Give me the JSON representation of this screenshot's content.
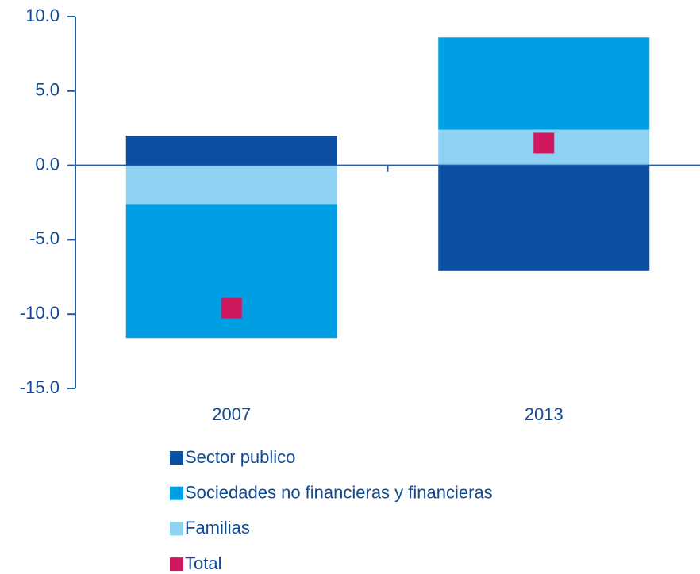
{
  "chart_data": {
    "type": "bar",
    "stacked": true,
    "categories": [
      "2007",
      "2013"
    ],
    "series": [
      {
        "name": "Sector publico",
        "color": "#0b4fa2",
        "values": [
          2.0,
          -7.1
        ]
      },
      {
        "name": "Sociedades no financieras y financieras",
        "color": "#009fe3",
        "values": [
          -9.0,
          6.2
        ]
      },
      {
        "name": "Familias",
        "color": "#8dd2f2",
        "values": [
          -2.6,
          2.4
        ]
      },
      {
        "name": "Total",
        "color": "#d0185f",
        "type": "scatter",
        "values": [
          -9.6,
          1.5
        ]
      }
    ],
    "ylim": [
      -15,
      10
    ],
    "yticks": [
      {
        "value": -15,
        "label": "-15.0"
      },
      {
        "value": -10,
        "label": "-10.0"
      },
      {
        "value": -5,
        "label": "-5.0"
      },
      {
        "value": 0,
        "label": "0.0"
      },
      {
        "value": 5,
        "label": "5.0"
      },
      {
        "value": 10,
        "label": "10.0"
      }
    ],
    "axis_color": "#1f5ea8",
    "text_color": "#114a94"
  }
}
